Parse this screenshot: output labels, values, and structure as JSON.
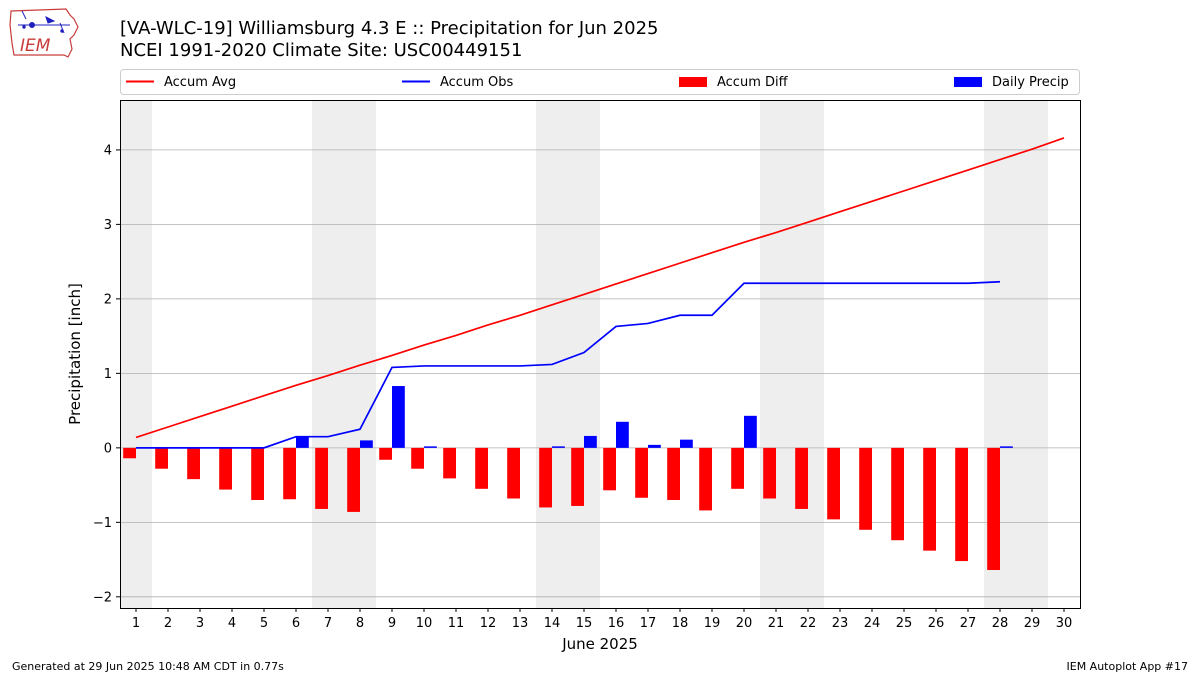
{
  "header": {
    "title_line1": "[VA-WLC-19] Williamsburg 4.3 E :: Precipitation for Jun 2025",
    "title_line2": "NCEI 1991-2020 Climate Site: USC00449151",
    "logo_text": "IEM"
  },
  "footer": {
    "generated": "Generated at 29 Jun 2025 10:48 AM CDT in 0.77s",
    "app": "IEM Autoplot App #17"
  },
  "chart_data": {
    "type": "bar",
    "xlabel": "June 2025",
    "ylabel": "Precipitation [inch]",
    "xlim": [
      0.5,
      30.5
    ],
    "ylim": [
      -2.15,
      4.67
    ],
    "x_ticks": [
      1,
      2,
      3,
      4,
      5,
      6,
      7,
      8,
      9,
      10,
      11,
      12,
      13,
      14,
      15,
      16,
      17,
      18,
      19,
      20,
      21,
      22,
      23,
      24,
      25,
      26,
      27,
      28,
      29,
      30
    ],
    "y_ticks": [
      -2,
      -1,
      0,
      1,
      2,
      3,
      4
    ],
    "y_tick_labels": [
      "−2",
      "−1",
      "0",
      "1",
      "2",
      "3",
      "4"
    ],
    "grid": "horizontal",
    "legend_placement": "top",
    "weekend_shading": [
      [
        0.5,
        1.5
      ],
      [
        6.5,
        8.5
      ],
      [
        13.5,
        15.5
      ],
      [
        20.5,
        22.5
      ],
      [
        27.5,
        29.5
      ]
    ],
    "colors": {
      "accum_avg": "#ff0000",
      "accum_obs": "#0000ff",
      "accum_diff": "#ff0000",
      "daily_precip": "#0000ff",
      "weekend": "#eeeeee",
      "grid": "#b0b0b0"
    },
    "legend": [
      {
        "key": "accum_avg",
        "label": "Accum Avg",
        "kind": "line"
      },
      {
        "key": "accum_obs",
        "label": "Accum Obs",
        "kind": "line"
      },
      {
        "key": "accum_diff",
        "label": "Accum Diff",
        "kind": "bar"
      },
      {
        "key": "daily_precip",
        "label": "Daily Precip",
        "kind": "bar"
      }
    ],
    "series": [
      {
        "name": "Accum Avg",
        "key": "accum_avg",
        "kind": "line",
        "x": [
          1,
          2,
          3,
          4,
          5,
          6,
          7,
          8,
          9,
          10,
          11,
          12,
          13,
          14,
          15,
          16,
          17,
          18,
          19,
          20,
          21,
          22,
          23,
          24,
          25,
          26,
          27,
          28,
          29,
          30
        ],
        "values": [
          0.14,
          0.28,
          0.42,
          0.56,
          0.7,
          0.84,
          0.97,
          1.11,
          1.24,
          1.38,
          1.51,
          1.65,
          1.78,
          1.92,
          2.06,
          2.2,
          2.34,
          2.48,
          2.62,
          2.76,
          2.89,
          3.03,
          3.17,
          3.31,
          3.45,
          3.59,
          3.73,
          3.87,
          4.01,
          4.16
        ]
      },
      {
        "name": "Accum Obs",
        "key": "accum_obs",
        "kind": "line",
        "x": [
          1,
          2,
          3,
          4,
          5,
          6,
          7,
          8,
          9,
          10,
          11,
          12,
          13,
          14,
          15,
          16,
          17,
          18,
          19,
          20,
          21,
          22,
          23,
          24,
          25,
          26,
          27,
          28
        ],
        "values": [
          0.0,
          0.0,
          0.0,
          0.0,
          0.0,
          0.15,
          0.15,
          0.25,
          1.08,
          1.1,
          1.1,
          1.1,
          1.1,
          1.12,
          1.28,
          1.63,
          1.67,
          1.78,
          1.78,
          2.21,
          2.21,
          2.21,
          2.21,
          2.21,
          2.21,
          2.21,
          2.21,
          2.23
        ]
      },
      {
        "name": "Accum Diff",
        "key": "accum_diff",
        "kind": "bar",
        "x": [
          1,
          2,
          3,
          4,
          5,
          6,
          7,
          8,
          9,
          10,
          11,
          12,
          13,
          14,
          15,
          16,
          17,
          18,
          19,
          20,
          21,
          22,
          23,
          24,
          25,
          26,
          27,
          28
        ],
        "values": [
          -0.14,
          -0.28,
          -0.42,
          -0.56,
          -0.7,
          -0.69,
          -0.82,
          -0.86,
          -0.16,
          -0.28,
          -0.41,
          -0.55,
          -0.68,
          -0.8,
          -0.78,
          -0.57,
          -0.67,
          -0.7,
          -0.84,
          -0.55,
          -0.68,
          -0.82,
          -0.96,
          -1.1,
          -1.24,
          -1.38,
          -1.52,
          -1.64
        ]
      },
      {
        "name": "Daily Precip",
        "key": "daily_precip",
        "kind": "bar",
        "x": [
          1,
          2,
          3,
          4,
          5,
          6,
          7,
          8,
          9,
          10,
          11,
          12,
          13,
          14,
          15,
          16,
          17,
          18,
          19,
          20,
          21,
          22,
          23,
          24,
          25,
          26,
          27,
          28
        ],
        "values": [
          0,
          0,
          0,
          0,
          0,
          0.15,
          0,
          0.1,
          0.83,
          0.02,
          0,
          0,
          0,
          0.02,
          0.16,
          0.35,
          0.04,
          0.11,
          0,
          0.43,
          0,
          0,
          0,
          0,
          0,
          0,
          0,
          0.02
        ]
      }
    ]
  }
}
